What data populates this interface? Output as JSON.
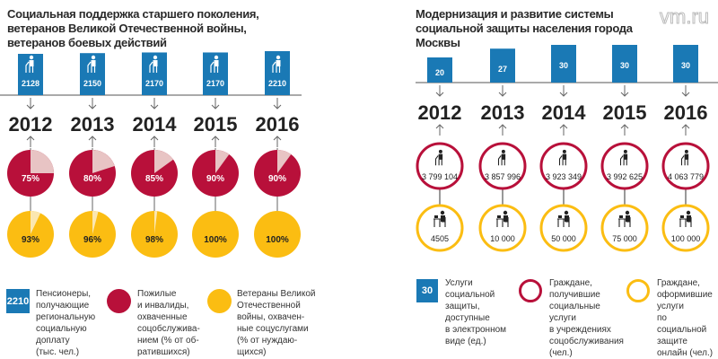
{
  "logo": "vm.ru",
  "colors": {
    "blue": "#1a79b5",
    "red": "#b8103a",
    "pale_red": "#e8c4c4",
    "yellow": "#fbbd12",
    "pale_yellow": "#fbe7b0",
    "line": "#666666"
  },
  "chart_data": [
    {
      "type": "bar+pie",
      "title": "Социальная поддержка старшего поколения, ветеранов Великой Отечественной войны, ветеранов боевых действий",
      "years": [
        "2012",
        "2013",
        "2014",
        "2015",
        "2016"
      ],
      "series": [
        {
          "name": "Пенсионеры, получающие региональную социальную доплату (тыс. чел.)",
          "kind": "bar",
          "values": [
            2128,
            2150,
            2170,
            2170,
            2210
          ],
          "labels": [
            "2128",
            "2150",
            "2170",
            "2170",
            "2210"
          ]
        },
        {
          "name": "Пожилые и инвалиды, охваченные соцобслуживанием (% от обратившихся)",
          "kind": "pie",
          "values": [
            75,
            80,
            85,
            90,
            90
          ],
          "labels": [
            "75%",
            "80%",
            "85%",
            "90%",
            "90%"
          ]
        },
        {
          "name": "Ветераны Великой Отечественной войны, охваченные соцуслугами (% от нуждающихся)",
          "kind": "pie",
          "values": [
            93,
            96,
            98,
            100,
            100
          ],
          "labels": [
            "93%",
            "96%",
            "98%",
            "100%",
            "100%"
          ]
        }
      ],
      "legend": [
        {
          "sample": "2210",
          "text": [
            "Пенсионеры,",
            "получающие",
            "региональную",
            "социальную",
            "доплату",
            "(тыс. чел.)"
          ]
        },
        {
          "text": [
            "Пожилые",
            "и инвалиды,",
            "охваченные",
            "соцобслужива-",
            "нием (% от об-",
            "ратившихся)"
          ]
        },
        {
          "text": [
            "Ветераны Великой",
            "Отечественной",
            "войны, охвачен-",
            "ные соцуслугами",
            "(% от нуждаю-",
            "щихся)"
          ]
        }
      ]
    },
    {
      "type": "bar+circle",
      "title": "Модернизация и развитие системы социальной защиты населения города Москвы",
      "years": [
        "2012",
        "2013",
        "2014",
        "2015",
        "2016"
      ],
      "series": [
        {
          "name": "Услуги социальной защиты, доступные в электронном виде (ед.)",
          "kind": "bar",
          "values": [
            20,
            27,
            30,
            30,
            30
          ],
          "labels": [
            "20",
            "27",
            "30",
            "30",
            "30"
          ]
        },
        {
          "name": "Граждане, получившие социальные услуги в учреждениях соцобслуживания (чел.)",
          "kind": "circle",
          "values": [
            3799104,
            3857996,
            3923349,
            3992625,
            4063779
          ],
          "labels": [
            "3 799 104",
            "3 857 996",
            "3 923 349",
            "3 992 625",
            "4 063 779"
          ]
        },
        {
          "name": "Граждане, оформившие услуги по социальной защите онлайн (чел.)",
          "kind": "circle",
          "values": [
            4505,
            10000,
            50000,
            75000,
            100000
          ],
          "labels": [
            "4505",
            "10 000",
            "50 000",
            "75 000",
            "100 000"
          ]
        }
      ],
      "legend": [
        {
          "sample": "30",
          "text": [
            "Услуги",
            "социальной",
            "защиты,",
            "доступные",
            "в электронном",
            "виде (ед.)"
          ]
        },
        {
          "text": [
            "Граждане,",
            "получившие",
            "социальные",
            "услуги",
            "в учреждениях",
            "соцобслуживания",
            "(чел.)"
          ]
        },
        {
          "text": [
            "Граждане,",
            "оформившие",
            "услуги",
            "по социальной",
            "защите",
            "онлайн (чел.)"
          ]
        }
      ]
    }
  ]
}
